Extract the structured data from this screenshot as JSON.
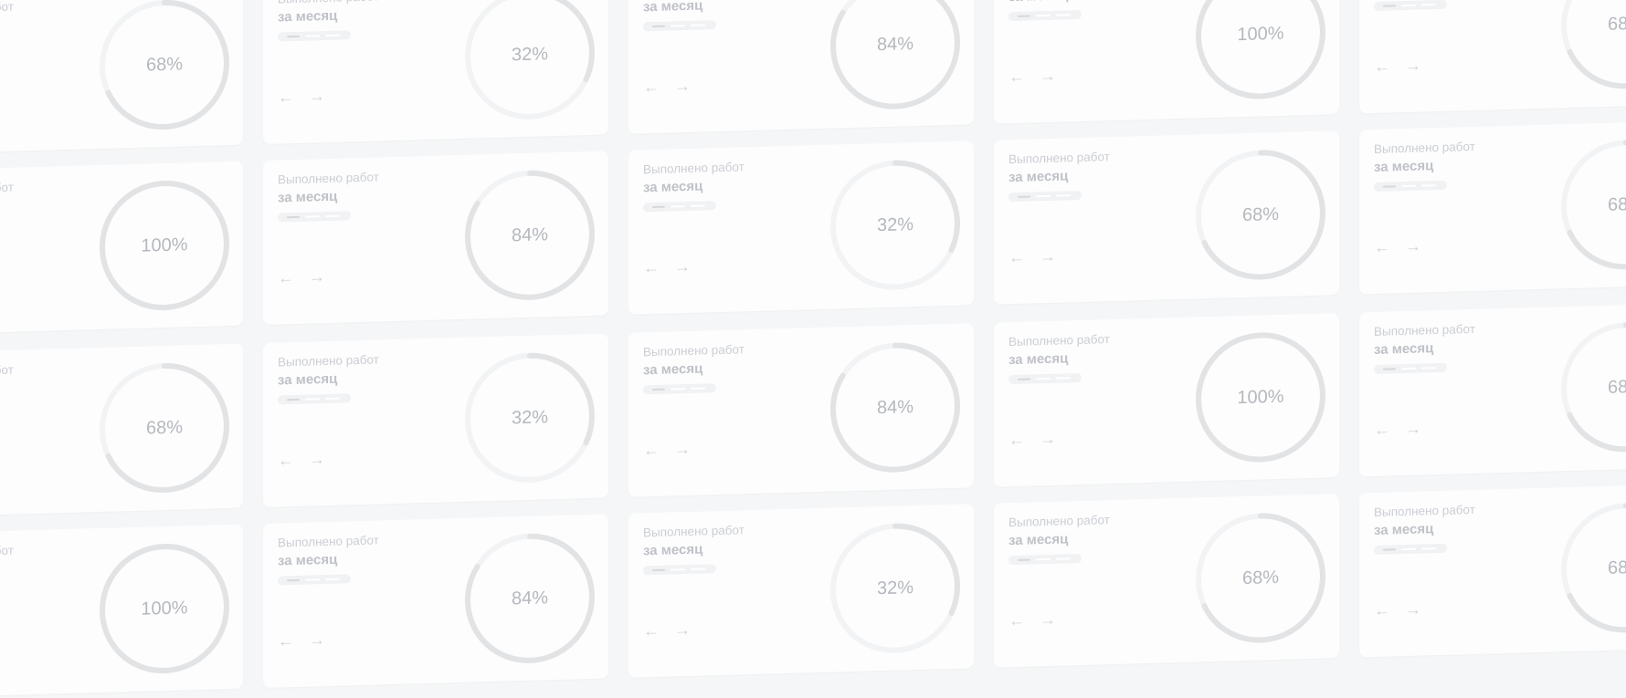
{
  "card_template": {
    "title": "Выполнено работ",
    "subtitle": "за месяц",
    "prev_arrow": "←",
    "next_arrow": "→"
  },
  "colors": {
    "background": "#f5f6f7",
    "card": "#fdfdfe",
    "ring_track": "#f2f3f4",
    "ring_progress": "#e2e3e5",
    "percent_text": "#b5b8bd"
  },
  "grid": {
    "rows": [
      [
        {
          "value": 68,
          "label": "68%"
        },
        {
          "value": 32,
          "label": "32%"
        },
        {
          "value": 84,
          "label": "84%"
        },
        {
          "value": 100,
          "label": "100%"
        },
        {
          "value": 68,
          "label": "68%"
        }
      ],
      [
        {
          "value": 100,
          "label": "100%"
        },
        {
          "value": 84,
          "label": "84%"
        },
        {
          "value": 32,
          "label": "32%"
        },
        {
          "value": 68,
          "label": "68%"
        },
        {
          "value": 68,
          "label": "68%"
        }
      ],
      [
        {
          "value": 68,
          "label": "68%"
        },
        {
          "value": 32,
          "label": "32%"
        },
        {
          "value": 84,
          "label": "84%"
        },
        {
          "value": 100,
          "label": "100%"
        },
        {
          "value": 68,
          "label": "68%"
        }
      ],
      [
        {
          "value": 100,
          "label": "100%"
        },
        {
          "value": 84,
          "label": "84%"
        },
        {
          "value": 32,
          "label": "32%"
        },
        {
          "value": 68,
          "label": "68%"
        },
        {
          "value": 68,
          "label": "68%"
        }
      ]
    ]
  }
}
